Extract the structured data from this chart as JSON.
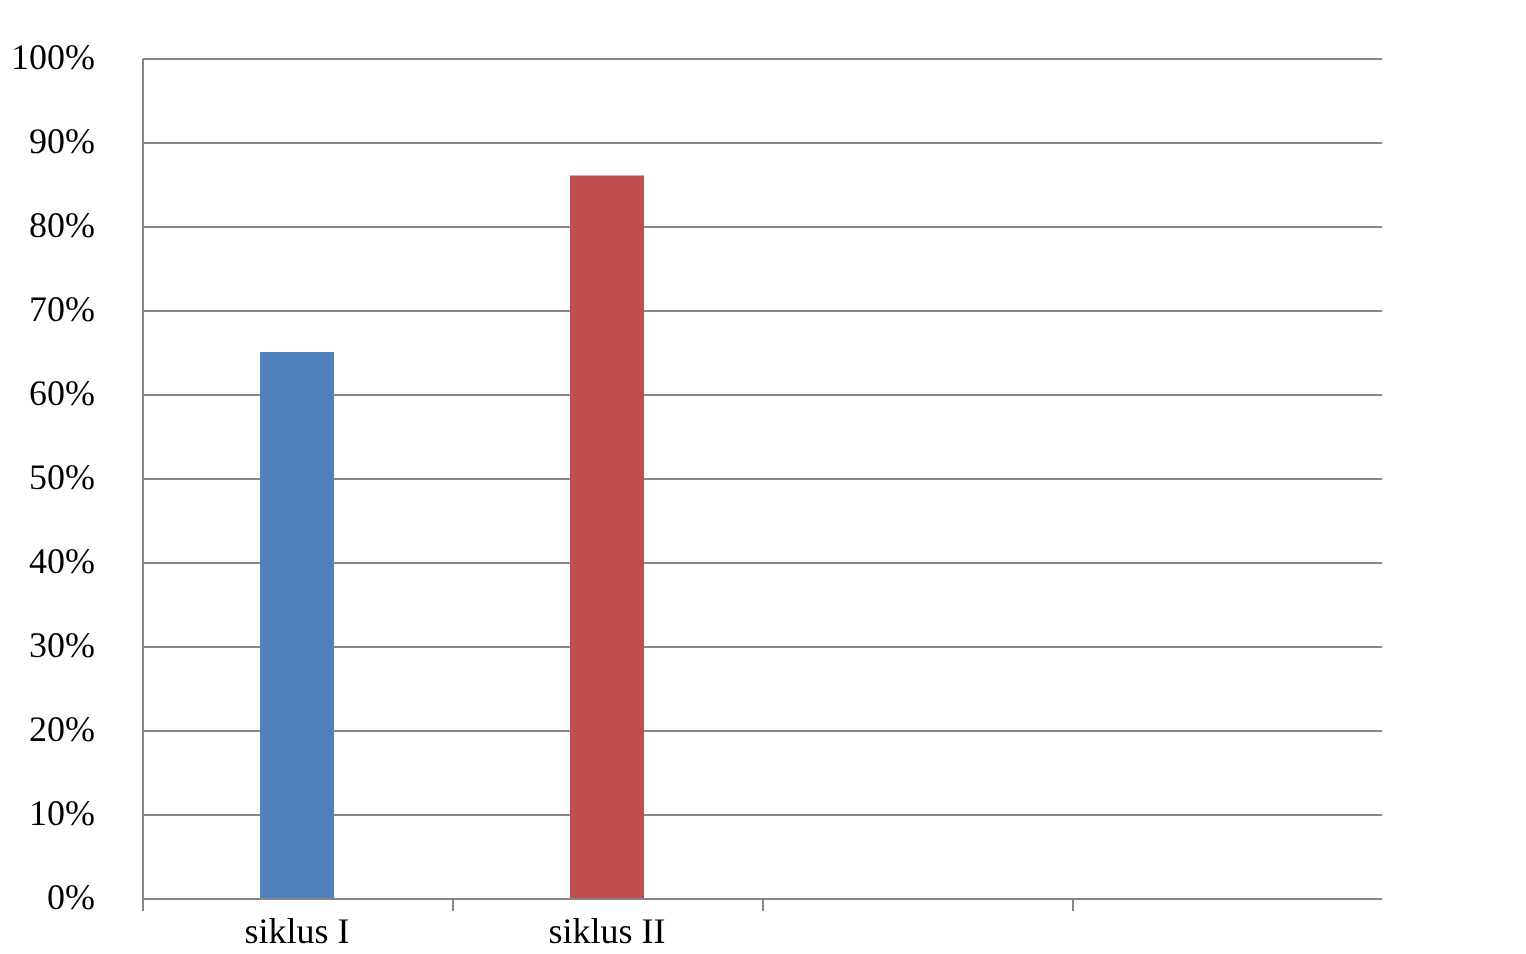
{
  "chart_data": {
    "type": "bar",
    "categories": [
      "siklus I",
      "siklus II",
      null,
      null
    ],
    "values": [
      65,
      86,
      null,
      null
    ],
    "colors": [
      "#4f81bd",
      "#c0504d",
      null,
      null
    ],
    "ylim": [
      0,
      100
    ],
    "yticks": [
      {
        "value": 0,
        "label": "0%"
      },
      {
        "value": 10,
        "label": "10%"
      },
      {
        "value": 20,
        "label": "20%"
      },
      {
        "value": 30,
        "label": "30%"
      },
      {
        "value": 40,
        "label": "40%"
      },
      {
        "value": 50,
        "label": "50%"
      },
      {
        "value": 60,
        "label": "60%"
      },
      {
        "value": 70,
        "label": "70%"
      },
      {
        "value": 80,
        "label": "80%"
      },
      {
        "value": 90,
        "label": "90%"
      },
      {
        "value": 100,
        "label": "100%"
      }
    ],
    "grid": "y"
  }
}
